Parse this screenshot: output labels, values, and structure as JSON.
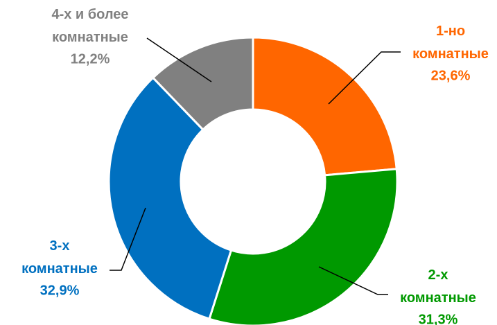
{
  "chart_data": {
    "type": "donut",
    "categories": [
      "1-но комнатные",
      "2-х комнатные",
      "3-х комнатные",
      "4-х и более комнатные"
    ],
    "values": [
      23.6,
      31.3,
      32.9,
      12.2
    ],
    "value_labels": [
      "23,6%",
      "31,3%",
      "32,9%",
      "12,2%"
    ],
    "colors": [
      "#FF6600",
      "#009900",
      "#0070C0",
      "#808080"
    ]
  }
}
